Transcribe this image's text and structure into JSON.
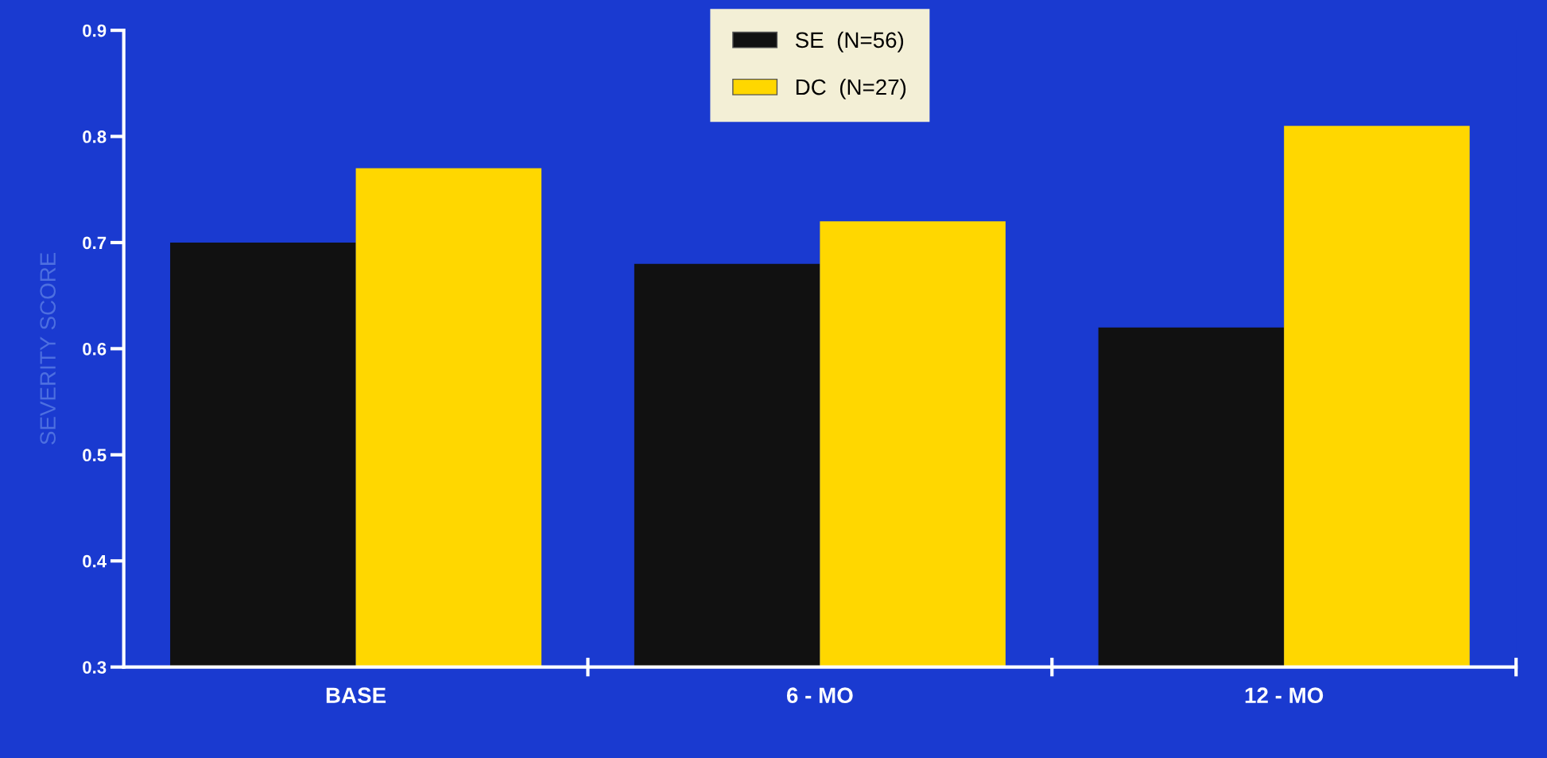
{
  "chart_data": {
    "type": "bar",
    "ylabel": "SEVERITY SCORE",
    "categories": [
      "BASE",
      "6 - MO",
      "12 - MO"
    ],
    "series": [
      {
        "name": "SE  (N=56)",
        "color": "#111111",
        "values": [
          0.7,
          0.68,
          0.62
        ]
      },
      {
        "name": "DC  (N=27)",
        "color": "#ffd700",
        "values": [
          0.77,
          0.72,
          0.81
        ]
      }
    ],
    "ylim": [
      0.3,
      0.9
    ],
    "yticks": [
      0.3,
      0.4,
      0.5,
      0.6,
      0.7,
      0.8,
      0.9
    ],
    "grid": false,
    "legend": "top"
  }
}
